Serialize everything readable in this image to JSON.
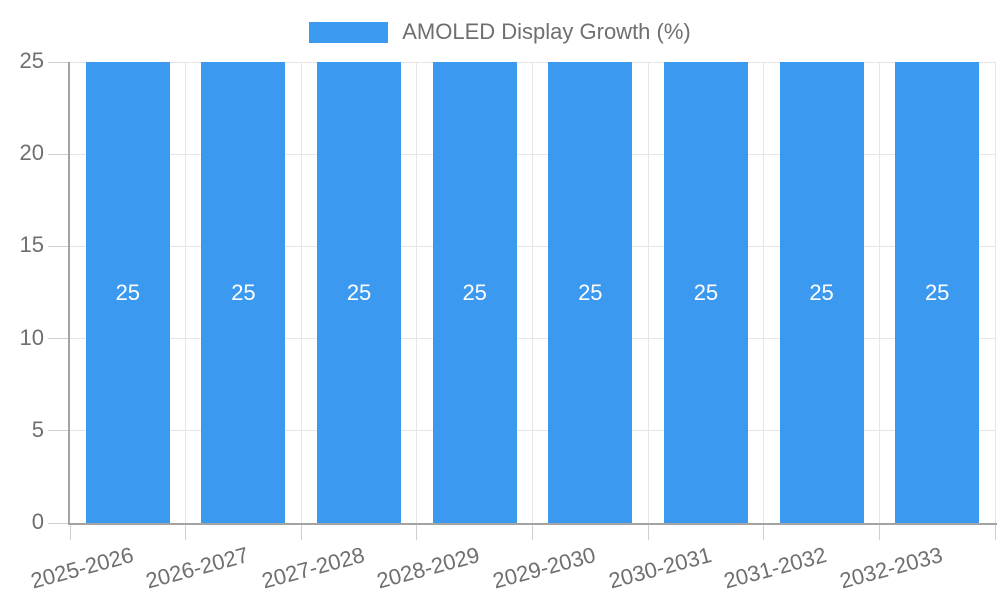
{
  "chart_data": {
    "type": "bar",
    "legend": {
      "label": "AMOLED Display Growth (%)",
      "position": "top"
    },
    "categories": [
      "2025-2026",
      "2026-2027",
      "2027-2028",
      "2028-2029",
      "2029-2030",
      "2030-2031",
      "2031-2032",
      "2032-2033"
    ],
    "series": [
      {
        "name": "AMOLED Display Growth (%)",
        "values": [
          25,
          25,
          25,
          25,
          25,
          25,
          25,
          25
        ]
      }
    ],
    "ylim": [
      0,
      25
    ],
    "yticks": [
      0,
      5,
      10,
      15,
      20,
      25
    ],
    "grid": true,
    "value_labels_position": "inside-center",
    "x_label_rotation_deg": -15,
    "colors": {
      "bar": "#3B99F0",
      "bar_value_label": "#FFFFFF",
      "axis_text": "#6F6F6F",
      "grid_line": "#E6E6E6",
      "tick_line": "#CFCFCF",
      "axis_line": "#A3A3A3",
      "background": "#FFFFFF"
    }
  }
}
